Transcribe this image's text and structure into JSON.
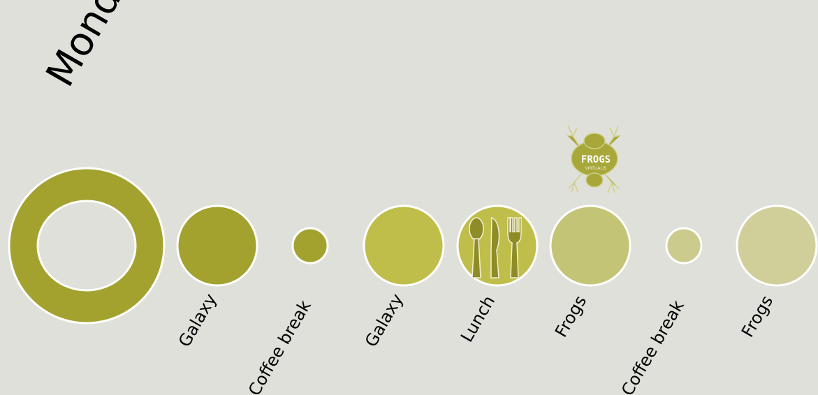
{
  "day": "Monday",
  "events": [
    {
      "label": "Galaxy",
      "color": "#a3a22f"
    },
    {
      "label": "Coffee break",
      "color": "#a3a22f"
    },
    {
      "label": "Galaxy",
      "color": "#c0be4a"
    },
    {
      "label": "Lunch",
      "color": "#c0be4a",
      "icon": "cutlery-icon"
    },
    {
      "label": "Frogs",
      "color": "#c4c476"
    },
    {
      "label": "Coffee break",
      "color": "#cccb8e"
    },
    {
      "label": "Frogs",
      "color": "#d0cf9a"
    }
  ],
  "logo": {
    "text": "FROGS",
    "subtext": "VIRTUALIS"
  },
  "colors": {
    "background": "#e0e0da",
    "ring": "#a3a22f",
    "outline": "#ffffff"
  }
}
